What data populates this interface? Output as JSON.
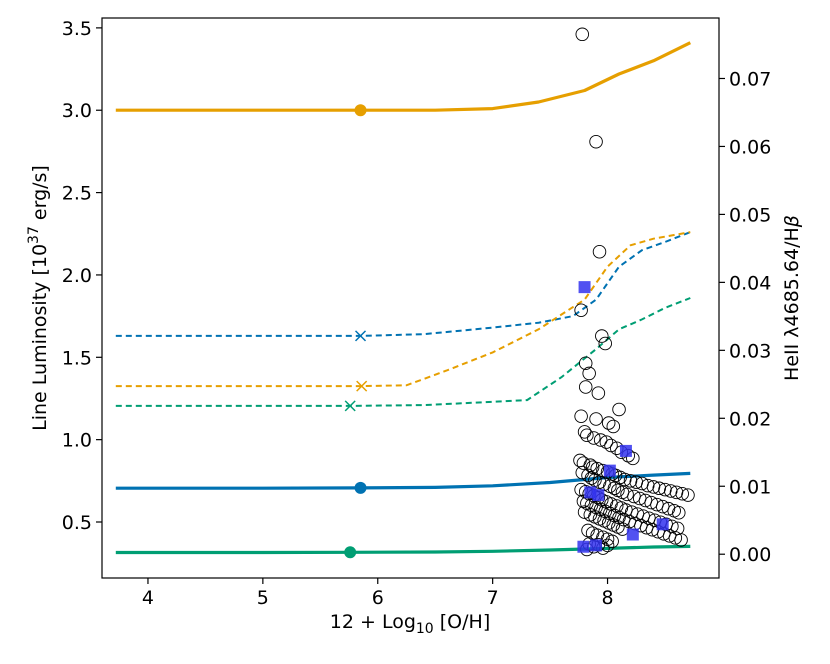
{
  "chart_data": {
    "type": "line",
    "x_axis": {
      "label_prefix": "12 + Log",
      "label_sub": "10",
      "label_suffix": " [O/H]",
      "lim": [
        3.6,
        8.97
      ],
      "ticks": [
        4,
        5,
        6,
        7,
        8
      ]
    },
    "y_left": {
      "label_prefix": "Line Luminosity [10",
      "label_sup": "37",
      "label_suffix": " erg/s]",
      "lim": [
        0.16,
        3.56
      ],
      "ticks": [
        0.5,
        1.0,
        1.5,
        2.0,
        2.5,
        3.0,
        3.5
      ],
      "tick_labels": [
        "0.5",
        "1.0",
        "1.5",
        "2.0",
        "2.5",
        "3.0",
        "3.5"
      ]
    },
    "y_right": {
      "label_prefix": "HeII λ4685.64/H",
      "label_italic": "β",
      "lim": [
        -0.0035,
        0.0789
      ],
      "ticks": [
        0.0,
        0.01,
        0.02,
        0.03,
        0.04,
        0.05,
        0.06,
        0.07
      ],
      "tick_labels": [
        "0.00",
        "0.01",
        "0.02",
        "0.03",
        "0.04",
        "0.05",
        "0.06",
        "0.07"
      ]
    },
    "colors": {
      "orange": "#E69F00",
      "blue": "#0072B2",
      "green": "#009E73",
      "squares": "#3333EE"
    },
    "solid_series": [
      {
        "name": "orange-luminosity",
        "color": "#E69F00",
        "axis": "left",
        "x": [
          3.72,
          5.0,
          5.85,
          6.5,
          7.0,
          7.4,
          7.8,
          8.1,
          8.4,
          8.72
        ],
        "y": [
          3.0,
          3.0,
          3.0,
          3.0,
          3.01,
          3.05,
          3.12,
          3.22,
          3.3,
          3.41
        ],
        "marker": {
          "x": 5.85,
          "y": 3.0
        }
      },
      {
        "name": "blue-luminosity",
        "color": "#0072B2",
        "axis": "left",
        "x": [
          3.72,
          5.0,
          5.85,
          6.5,
          7.0,
          7.5,
          8.0,
          8.4,
          8.72
        ],
        "y": [
          0.705,
          0.705,
          0.707,
          0.71,
          0.72,
          0.74,
          0.77,
          0.785,
          0.795
        ],
        "marker": {
          "x": 5.85,
          "y": 0.707
        }
      },
      {
        "name": "green-luminosity",
        "color": "#009E73",
        "axis": "left",
        "x": [
          3.72,
          5.0,
          5.76,
          6.5,
          7.0,
          7.5,
          8.0,
          8.4,
          8.72
        ],
        "y": [
          0.315,
          0.315,
          0.316,
          0.318,
          0.322,
          0.33,
          0.34,
          0.348,
          0.352
        ],
        "marker": {
          "x": 5.76,
          "y": 0.316
        }
      }
    ],
    "dashed_series": [
      {
        "name": "blue-heii-ratio",
        "color": "#0072B2",
        "axis": "left",
        "x": [
          3.72,
          5.0,
          5.85,
          6.4,
          7.0,
          7.4,
          7.7,
          7.9,
          8.1,
          8.3,
          8.5,
          8.72
        ],
        "y": [
          1.63,
          1.63,
          1.63,
          1.64,
          1.68,
          1.71,
          1.75,
          1.85,
          2.05,
          2.15,
          2.2,
          2.26
        ],
        "marker": {
          "x": 5.85,
          "y": 1.63
        }
      },
      {
        "name": "orange-heii-ratio",
        "color": "#E69F00",
        "axis": "left",
        "x": [
          3.72,
          5.0,
          5.86,
          6.25,
          6.6,
          7.0,
          7.4,
          7.8,
          8.0,
          8.2,
          8.4,
          8.72
        ],
        "y": [
          1.325,
          1.325,
          1.325,
          1.33,
          1.42,
          1.53,
          1.67,
          1.85,
          2.05,
          2.18,
          2.22,
          2.26
        ],
        "marker": {
          "x": 5.86,
          "y": 1.325
        }
      },
      {
        "name": "green-heii-ratio",
        "color": "#009E73",
        "axis": "left",
        "x": [
          3.72,
          5.0,
          5.76,
          6.4,
          7.0,
          7.3,
          7.6,
          7.9,
          8.1,
          8.3,
          8.5,
          8.72
        ],
        "y": [
          1.205,
          1.205,
          1.205,
          1.21,
          1.23,
          1.24,
          1.38,
          1.55,
          1.67,
          1.73,
          1.8,
          1.86
        ],
        "marker": {
          "x": 5.76,
          "y": 1.205
        }
      }
    ],
    "observed_circles": {
      "axis": "right",
      "x": [
        7.78,
        7.9,
        7.93,
        7.95,
        7.77,
        7.81,
        7.84,
        7.98,
        7.81,
        7.92,
        8.1,
        7.77,
        7.9,
        8.01,
        8.05,
        7.8,
        7.82,
        7.88,
        7.94,
        7.99,
        8.03,
        8.08,
        8.12,
        8.18,
        8.22,
        7.76,
        7.79,
        7.85,
        7.87,
        7.91,
        7.96,
        8.0,
        8.04,
        8.07,
        8.11,
        8.15,
        8.2,
        8.25,
        8.3,
        8.35,
        8.4,
        8.45,
        8.5,
        8.55,
        8.6,
        8.65,
        8.7,
        7.78,
        7.83,
        7.86,
        7.89,
        7.93,
        7.97,
        8.02,
        8.06,
        8.09,
        8.13,
        8.17,
        8.23,
        8.28,
        8.33,
        8.38,
        8.43,
        8.48,
        8.53,
        8.58,
        8.62,
        7.77,
        7.81,
        7.84,
        7.88,
        7.92,
        7.95,
        7.99,
        8.03,
        8.08,
        8.12,
        8.16,
        8.21,
        8.26,
        8.31,
        8.36,
        8.41,
        8.46,
        8.51,
        8.56,
        8.61,
        7.79,
        7.82,
        7.86,
        7.9,
        7.94,
        7.98,
        8.02,
        8.06,
        8.1,
        8.14,
        8.19,
        8.24,
        8.29,
        8.34,
        8.39,
        8.44,
        8.49,
        8.54,
        8.59,
        8.64,
        7.8,
        7.85,
        7.89,
        7.93,
        7.97,
        8.01,
        8.05,
        8.09,
        8.13,
        7.83,
        7.87,
        7.91,
        7.96,
        8.0,
        8.04,
        7.84,
        7.92,
        8.0,
        7.88,
        7.96,
        7.82
      ],
      "y": [
        0.0765,
        0.0607,
        0.0445,
        0.0321,
        0.0359,
        0.0281,
        0.0266,
        0.031,
        0.0246,
        0.0237,
        0.0213,
        0.0203,
        0.0199,
        0.0193,
        0.0188,
        0.018,
        0.0175,
        0.0171,
        0.0168,
        0.0165,
        0.016,
        0.0156,
        0.015,
        0.0145,
        0.0141,
        0.0138,
        0.0134,
        0.0131,
        0.0128,
        0.0126,
        0.0123,
        0.0121,
        0.0118,
        0.0116,
        0.0113,
        0.011,
        0.0108,
        0.0106,
        0.0104,
        0.0101,
        0.0099,
        0.0097,
        0.0095,
        0.0093,
        0.0091,
        0.0089,
        0.0087,
        0.012,
        0.0116,
        0.0112,
        0.0109,
        0.0106,
        0.0103,
        0.01,
        0.0097,
        0.0094,
        0.0091,
        0.0088,
        0.0085,
        0.0082,
        0.0079,
        0.0076,
        0.0073,
        0.007,
        0.0067,
        0.0064,
        0.0061,
        0.0095,
        0.0092,
        0.0089,
        0.0086,
        0.0083,
        0.008,
        0.0077,
        0.0074,
        0.0071,
        0.0068,
        0.0065,
        0.0062,
        0.0059,
        0.0056,
        0.0053,
        0.005,
        0.0047,
        0.0044,
        0.0041,
        0.0038,
        0.0078,
        0.0075,
        0.0072,
        0.0069,
        0.0066,
        0.0063,
        0.006,
        0.0057,
        0.0054,
        0.0051,
        0.0048,
        0.0045,
        0.0042,
        0.0039,
        0.0036,
        0.0033,
        0.003,
        0.0027,
        0.0024,
        0.0021,
        0.0062,
        0.0058,
        0.0055,
        0.0052,
        0.0049,
        0.0046,
        0.0043,
        0.004,
        0.0037,
        0.0035,
        0.0031,
        0.0028,
        0.0025,
        0.0022,
        0.0019,
        0.0015,
        0.0014,
        0.0013,
        0.0011,
        0.0009,
        0.0007
      ]
    },
    "observed_squares": {
      "axis": "right",
      "x": [
        7.8,
        8.16,
        8.02,
        7.92,
        7.85,
        8.22,
        8.48,
        7.79,
        7.9
      ],
      "y": [
        0.0393,
        0.0152,
        0.0123,
        0.0087,
        0.0091,
        0.0029,
        0.0044,
        0.0011,
        0.0013
      ]
    }
  }
}
